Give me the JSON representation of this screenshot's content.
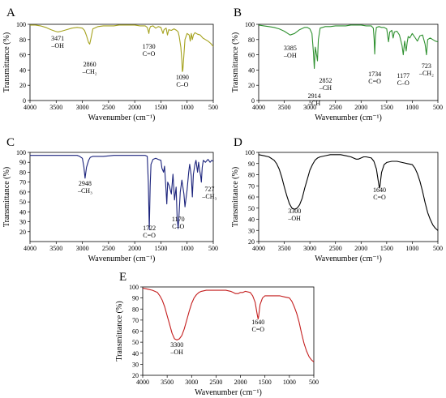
{
  "chart_data": [
    {
      "type": "line",
      "panel": "A",
      "xlabel": "Wavenumber (cm⁻¹)",
      "ylabel": "Transmittance (%)",
      "xlim": [
        4000,
        500
      ],
      "ylim": [
        0,
        100
      ],
      "x_ticks": [
        "4000",
        "3500",
        "3000",
        "2500",
        "2000",
        "1500",
        "1000",
        "500"
      ],
      "y_ticks": [
        "0",
        "20",
        "40",
        "60",
        "80",
        "100"
      ],
      "color": "#a5a21e",
      "series": [
        {
          "x": [
            4000,
            3900,
            3800,
            3700,
            3600,
            3520,
            3471,
            3400,
            3300,
            3200,
            3100,
            3000,
            2960,
            2920,
            2880,
            2860,
            2840,
            2800,
            2700,
            2600,
            2500,
            2400,
            2300,
            2200,
            2100,
            2000,
            1900,
            1800,
            1760,
            1740,
            1730,
            1720,
            1700,
            1650,
            1600,
            1550,
            1500,
            1460,
            1440,
            1400,
            1375,
            1350,
            1300,
            1250,
            1200,
            1170,
            1150,
            1120,
            1100,
            1090,
            1080,
            1060,
            1040,
            1000,
            960,
            940,
            920,
            900,
            880,
            850,
            800,
            750,
            700,
            650,
            600,
            550,
            500
          ],
          "y": [
            99,
            99,
            98,
            96,
            93,
            91,
            90,
            91,
            93,
            95,
            96,
            95,
            92,
            85,
            76,
            74,
            80,
            94,
            97,
            98,
            98,
            98,
            99,
            99,
            99,
            99,
            98,
            98,
            96,
            91,
            88,
            93,
            97,
            98,
            95,
            97,
            96,
            88,
            93,
            95,
            86,
            93,
            92,
            94,
            92,
            90,
            84,
            70,
            52,
            38,
            40,
            60,
            80,
            88,
            86,
            78,
            88,
            80,
            86,
            89,
            87,
            86,
            82,
            80,
            78,
            75,
            71
          ]
        }
      ],
      "annotations": [
        {
          "x": 3471,
          "lines": [
            "3471",
            "–OH"
          ]
        },
        {
          "x": 2860,
          "lines": [
            "2860",
            "–CH₂"
          ]
        },
        {
          "x": 1730,
          "lines": [
            "1730",
            "C=O"
          ]
        },
        {
          "x": 1090,
          "lines": [
            "1090",
            "C–O"
          ]
        }
      ]
    },
    {
      "type": "line",
      "panel": "B",
      "xlabel": "Wavenumber (cm⁻¹)",
      "ylabel": "Transmittance (%)",
      "xlim": [
        4000,
        500
      ],
      "ylim": [
        0,
        100
      ],
      "x_ticks": [
        "4000",
        "3500",
        "3000",
        "2500",
        "2000",
        "1500",
        "1000",
        "500"
      ],
      "y_ticks": [
        "0",
        "20",
        "40",
        "60",
        "80",
        "100"
      ],
      "color": "#2f9130",
      "series": [
        {
          "x": [
            4000,
            3900,
            3800,
            3700,
            3600,
            3500,
            3385,
            3300,
            3200,
            3100,
            3050,
            3000,
            2960,
            2930,
            2914,
            2895,
            2870,
            2852,
            2835,
            2800,
            2700,
            2600,
            2500,
            2400,
            2300,
            2200,
            2100,
            2000,
            1900,
            1800,
            1760,
            1745,
            1734,
            1720,
            1700,
            1650,
            1600,
            1550,
            1500,
            1465,
            1440,
            1400,
            1375,
            1350,
            1300,
            1250,
            1200,
            1177,
            1150,
            1120,
            1100,
            1080,
            1050,
            1000,
            950,
            900,
            850,
            800,
            750,
            723,
            700,
            650,
            600,
            550,
            500
          ],
          "y": [
            99,
            98,
            97,
            96,
            94,
            91,
            86,
            88,
            93,
            96,
            96,
            94,
            88,
            62,
            42,
            70,
            60,
            52,
            80,
            95,
            97,
            97,
            98,
            98,
            98,
            99,
            99,
            99,
            98,
            98,
            95,
            80,
            61,
            85,
            96,
            97,
            96,
            96,
            94,
            77,
            90,
            92,
            82,
            90,
            91,
            86,
            72,
            60,
            78,
            65,
            76,
            84,
            82,
            88,
            83,
            78,
            85,
            86,
            74,
            60,
            80,
            82,
            80,
            78,
            77
          ]
        }
      ],
      "annotations": [
        {
          "x": 3385,
          "lines": [
            "3385",
            "–OH"
          ]
        },
        {
          "x": 2914,
          "lines": [
            "2914",
            "–CH"
          ]
        },
        {
          "x": 2852,
          "lines": [
            "2852",
            "–CH"
          ]
        },
        {
          "x": 1734,
          "lines": [
            "1734",
            "C=O"
          ]
        },
        {
          "x": 1177,
          "lines": [
            "1177",
            "C–O"
          ]
        },
        {
          "x": 723,
          "lines": [
            "723",
            "–CH₂"
          ]
        }
      ]
    },
    {
      "type": "line",
      "panel": "C",
      "xlabel": "Wavenumber (cm⁻¹)",
      "ylabel": "Transmittance (%)",
      "xlim": [
        4000,
        500
      ],
      "ylim": [
        10,
        100
      ],
      "x_ticks": [
        "4000",
        "3500",
        "3000",
        "2500",
        "2000",
        "1500",
        "1000",
        "500"
      ],
      "y_ticks": [
        "20",
        "30",
        "40",
        "50",
        "60",
        "70",
        "80",
        "90",
        "100"
      ],
      "color": "#1b237c",
      "series": [
        {
          "x": [
            4000,
            3800,
            3600,
            3400,
            3200,
            3100,
            3050,
            3000,
            2970,
            2948,
            2920,
            2880,
            2850,
            2800,
            2600,
            2400,
            2200,
            2000,
            1900,
            1800,
            1760,
            1740,
            1722,
            1705,
            1690,
            1650,
            1600,
            1550,
            1500,
            1480,
            1450,
            1430,
            1400,
            1388,
            1370,
            1340,
            1300,
            1270,
            1240,
            1210,
            1190,
            1170,
            1150,
            1130,
            1100,
            1060,
            1040,
            1000,
            970,
            950,
            920,
            900,
            880,
            850,
            830,
            800,
            780,
            760,
            740,
            727,
            710,
            690,
            650,
            600,
            560,
            530,
            500
          ],
          "y": [
            97,
            97,
            97,
            97,
            97,
            97,
            96,
            94,
            85,
            74,
            85,
            92,
            95,
            96,
            96,
            97,
            97,
            97,
            97,
            97,
            96,
            70,
            22,
            66,
            88,
            93,
            94,
            93,
            92,
            84,
            80,
            86,
            60,
            48,
            70,
            66,
            58,
            78,
            52,
            65,
            35,
            23,
            40,
            60,
            72,
            58,
            45,
            62,
            80,
            88,
            76,
            55,
            78,
            88,
            92,
            80,
            90,
            82,
            76,
            70,
            85,
            92,
            90,
            93,
            90,
            92,
            91
          ]
        }
      ],
      "annotations": [
        {
          "x": 2948,
          "lines": [
            "2948",
            "–CH₃"
          ]
        },
        {
          "x": 1722,
          "lines": [
            "1722",
            "C=O"
          ]
        },
        {
          "x": 1170,
          "lines": [
            "1170",
            "C–O"
          ]
        },
        {
          "x": 727,
          "lines": [
            "727",
            "–CH₃"
          ]
        }
      ]
    },
    {
      "type": "line",
      "panel": "D",
      "xlabel": "Wavenumber (cm⁻¹)",
      "ylabel": "Transmittance (%)",
      "xlim": [
        4000,
        500
      ],
      "ylim": [
        20,
        100
      ],
      "x_ticks": [
        "4000",
        "3500",
        "3000",
        "2500",
        "2000",
        "1500",
        "1000",
        "500"
      ],
      "y_ticks": [
        "20",
        "30",
        "40",
        "50",
        "60",
        "70",
        "80",
        "90",
        "100"
      ],
      "color": "#000000",
      "series": [
        {
          "x": [
            4000,
            3900,
            3800,
            3700,
            3650,
            3600,
            3550,
            3500,
            3450,
            3400,
            3350,
            3300,
            3250,
            3200,
            3150,
            3100,
            3050,
            3000,
            2950,
            2900,
            2850,
            2800,
            2700,
            2600,
            2500,
            2400,
            2300,
            2200,
            2150,
            2100,
            2050,
            2000,
            1950,
            1900,
            1800,
            1750,
            1700,
            1670,
            1650,
            1640,
            1630,
            1600,
            1550,
            1500,
            1400,
            1300,
            1200,
            1100,
            1000,
            950,
            900,
            850,
            800,
            750,
            700,
            650,
            600,
            550,
            500
          ],
          "y": [
            98,
            97,
            96,
            93,
            90,
            85,
            78,
            69,
            61,
            54,
            50,
            49,
            50,
            53,
            59,
            68,
            76,
            84,
            89,
            93,
            95,
            96,
            97,
            98,
            98,
            98,
            97,
            96,
            95,
            94,
            94,
            95,
            96,
            96,
            95,
            92,
            85,
            76,
            70,
            68,
            70,
            82,
            89,
            91,
            92,
            92,
            91,
            90,
            89,
            86,
            81,
            74,
            65,
            55,
            46,
            40,
            35,
            32,
            30
          ]
        }
      ],
      "annotations": [
        {
          "x": 3300,
          "lines": [
            "3300",
            "–OH"
          ]
        },
        {
          "x": 1640,
          "lines": [
            "1640",
            "C=O"
          ]
        }
      ]
    },
    {
      "type": "line",
      "panel": "E",
      "xlabel": "Wavenumber (cm⁻¹)",
      "ylabel": "Transmittance (%)",
      "xlim": [
        4000,
        500
      ],
      "ylim": [
        20,
        100
      ],
      "x_ticks": [
        "4000",
        "3500",
        "3000",
        "2500",
        "2000",
        "1500",
        "1000",
        "500"
      ],
      "y_ticks": [
        "20",
        "30",
        "40",
        "50",
        "60",
        "70",
        "80",
        "90",
        "100"
      ],
      "color": "#c41e1e",
      "series": [
        {
          "x": [
            4000,
            3900,
            3800,
            3700,
            3650,
            3600,
            3550,
            3500,
            3450,
            3400,
            3350,
            3300,
            3250,
            3200,
            3150,
            3100,
            3050,
            3000,
            2950,
            2900,
            2850,
            2800,
            2700,
            2600,
            2500,
            2400,
            2300,
            2200,
            2150,
            2100,
            2050,
            2000,
            1950,
            1900,
            1800,
            1750,
            1700,
            1670,
            1650,
            1640,
            1630,
            1600,
            1550,
            1500,
            1400,
            1300,
            1200,
            1100,
            1000,
            950,
            900,
            850,
            800,
            750,
            700,
            650,
            600,
            550,
            500
          ],
          "y": [
            99,
            98,
            97,
            95,
            92,
            88,
            82,
            74,
            66,
            58,
            53,
            52,
            53,
            56,
            62,
            70,
            78,
            85,
            90,
            93,
            95,
            96,
            97,
            97,
            97,
            97,
            97,
            96,
            95,
            94,
            94,
            95,
            95,
            96,
            95,
            92,
            86,
            78,
            73,
            71,
            73,
            84,
            90,
            92,
            92,
            92,
            92,
            91,
            90,
            87,
            82,
            76,
            68,
            58,
            49,
            42,
            37,
            34,
            32
          ]
        }
      ],
      "annotations": [
        {
          "x": 3300,
          "lines": [
            "3300",
            "–OH"
          ]
        },
        {
          "x": 1640,
          "lines": [
            "1640",
            "C=O"
          ]
        }
      ]
    }
  ]
}
